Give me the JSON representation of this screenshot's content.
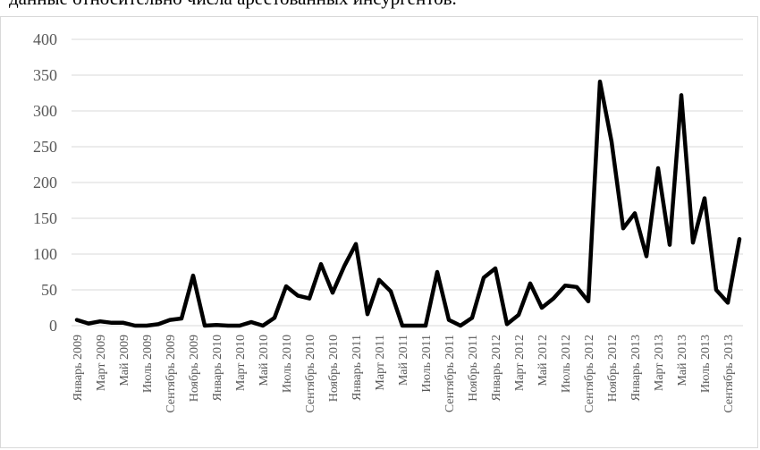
{
  "caption": "данные относительно числа арестованных инсургентов.",
  "chart_data": {
    "type": "line",
    "title": "",
    "xlabel": "",
    "ylabel": "",
    "ylim": [
      0,
      400
    ],
    "yticks": [
      0,
      50,
      100,
      150,
      200,
      250,
      300,
      350,
      400
    ],
    "grid": true,
    "legend": "none",
    "line_color": "#000000",
    "grid_color": "#d9d9d9",
    "x_tick_labels": [
      "Январь 2009",
      "Март 2009",
      "Май 2009",
      "Июль 2009",
      "Сентябрь 2009",
      "Ноябрь 2009",
      "Январь 2010",
      "Март 2010",
      "Май 2010",
      "Июль 2010",
      "Сентябрь 2010",
      "Ноябрь 2010",
      "Январь 2011",
      "Март 2011",
      "Май 2011",
      "Июль 2011",
      "Сентябрь 2011",
      "Ноябрь 2011",
      "Январь 2012",
      "Март 2012",
      "Май 2012",
      "Июль 2012",
      "Сентябрь 2012",
      "Ноябрь 2012",
      "Январь 2013",
      "Март 2013",
      "Май 2013",
      "Июль 2013",
      "Сентябрь 2013"
    ],
    "tick_every": 2,
    "values": [
      8,
      3,
      6,
      4,
      4,
      0,
      0,
      2,
      8,
      10,
      70,
      0,
      1,
      0,
      0,
      5,
      0,
      11,
      55,
      42,
      38,
      86,
      46,
      83,
      114,
      16,
      64,
      48,
      0,
      0,
      0,
      75,
      8,
      0,
      11,
      67,
      80,
      2,
      15,
      59,
      25,
      38,
      56,
      54,
      34,
      341,
      257,
      136,
      157,
      97,
      220,
      113,
      322,
      116,
      178,
      50,
      32,
      121
    ]
  }
}
